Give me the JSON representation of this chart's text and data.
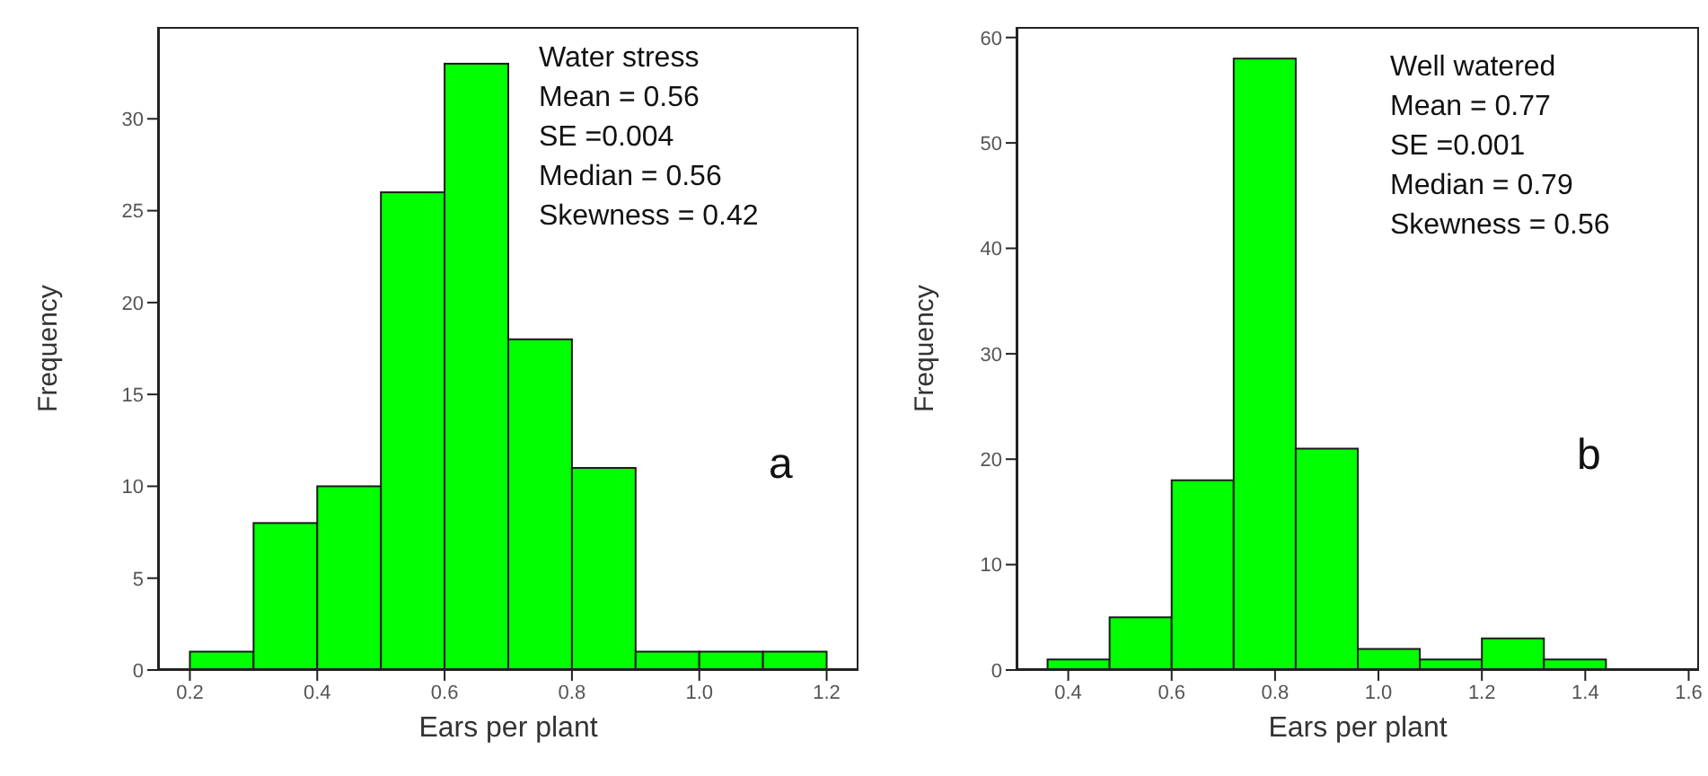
{
  "chart_data": [
    {
      "type": "histogram",
      "xlabel": "Ears per plant",
      "ylabel": "Frequency",
      "bins": [
        0.2,
        0.3,
        0.4,
        0.5,
        0.6,
        0.7,
        0.8,
        0.9,
        1.0,
        1.1,
        1.2
      ],
      "values": [
        1,
        8,
        10,
        26,
        33,
        18,
        11,
        1,
        1,
        1
      ],
      "color": "#00ff00",
      "xlim": [
        0.15,
        1.25
      ],
      "xticks": [
        {
          "value": 0.2,
          "label": "0.2"
        },
        {
          "value": 0.4,
          "label": "0.4"
        },
        {
          "value": 0.6,
          "label": "0.6"
        },
        {
          "value": 0.8,
          "label": "0.8"
        },
        {
          "value": 1.0,
          "label": "1.0"
        },
        {
          "value": 1.2,
          "label": "1.2"
        }
      ],
      "ylim": [
        0,
        35
      ],
      "yticks": [
        0,
        5,
        10,
        15,
        20,
        25,
        30
      ],
      "annotations": [
        "Water stress\nMean = 0.56\nSE =0.004\nMedian = 0.56\nSkewness = 0.42",
        "a"
      ]
    },
    {
      "type": "histogram",
      "xlabel": "Ears per plant",
      "ylabel": "Frequency",
      "bins": [
        0.36,
        0.48,
        0.6,
        0.72,
        0.84,
        0.96,
        1.08,
        1.2,
        1.32,
        1.44
      ],
      "values": [
        1,
        5,
        18,
        58,
        21,
        2,
        1,
        3,
        1
      ],
      "color": "#00ff00",
      "xlim": [
        0.3,
        1.62
      ],
      "xticks": [
        {
          "value": 0.4,
          "label": "0.4"
        },
        {
          "value": 0.6,
          "label": "0.6"
        },
        {
          "value": 0.8,
          "label": "0.8"
        },
        {
          "value": 1.0,
          "label": "1.0"
        },
        {
          "value": 1.2,
          "label": "1.2"
        },
        {
          "value": 1.4,
          "label": "1.4"
        },
        {
          "value": 1.6,
          "label": "1.6"
        }
      ],
      "ylim": [
        0,
        61
      ],
      "yticks": [
        0,
        10,
        20,
        30,
        40,
        50,
        60
      ],
      "annotations": [
        "Well watered\nMean = 0.77\nSE =0.001\nMedian = 0.79\nSkewness = 0.56",
        "b"
      ]
    }
  ]
}
